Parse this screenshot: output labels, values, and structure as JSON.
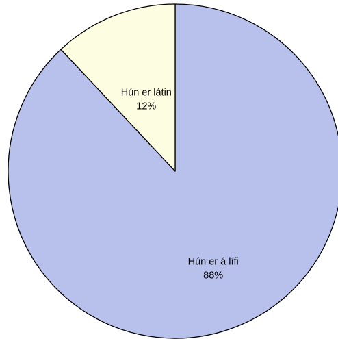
{
  "chart_data": {
    "type": "pie",
    "slices": [
      {
        "label": "Hún er á lífi",
        "value": 88,
        "percent_label": "88%",
        "color": "#b7c1ec"
      },
      {
        "label": "Hún er látin",
        "value": 12,
        "percent_label": "12%",
        "color": "#fdfde2"
      }
    ]
  }
}
